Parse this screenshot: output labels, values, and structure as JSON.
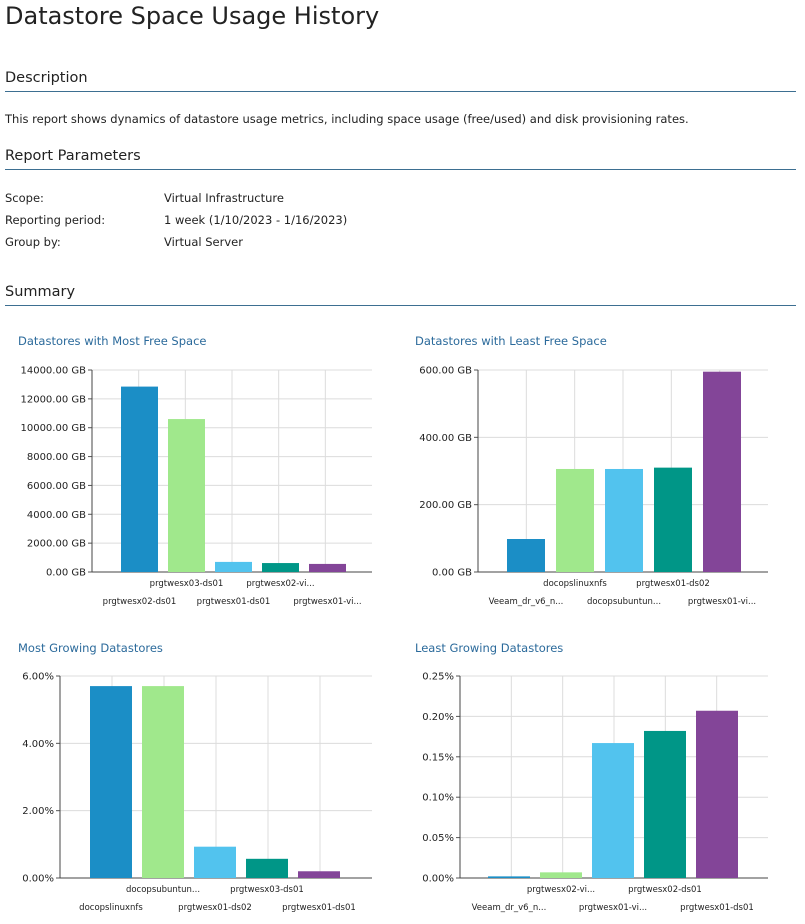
{
  "report": {
    "title": "Datastore Space Usage History",
    "sections": {
      "description": "Description",
      "parameters": "Report Parameters",
      "summary": "Summary"
    },
    "description_text": "This report shows dynamics of datastore usage metrics, including space usage (free/used) and disk provisioning rates.",
    "parameters": [
      {
        "label": "Scope:",
        "value": "Virtual Infrastructure"
      },
      {
        "label": "Reporting period:",
        "value": "1 week (1/10/2023 - 1/16/2023)"
      },
      {
        "label": "Group by:",
        "value": "Virtual Server"
      }
    ]
  },
  "colors": [
    "#1b8ec6",
    "#a0e88c",
    "#52c3ee",
    "#009687",
    "#834598"
  ],
  "chart_data": [
    {
      "type": "bar",
      "title": "Datastores with Most Free Space",
      "categories": [
        "prgtwesx02-ds01",
        "prgtwesx03-ds01",
        "prgtwesx01-ds01",
        "prgtwesx02-vi...",
        "prgtwesx01-vi..."
      ],
      "values": [
        12850,
        10600,
        700,
        620,
        560
      ],
      "ylim": [
        0,
        14000
      ],
      "yticks": [
        "0.00 GB",
        "2000.00 GB",
        "4000.00 GB",
        "6000.00 GB",
        "8000.00 GB",
        "10000.00 GB",
        "12000.00 GB",
        "14000.00 GB"
      ],
      "ytick_values": [
        0,
        2000,
        4000,
        6000,
        8000,
        10000,
        12000,
        14000
      ],
      "xlabel": "",
      "ylabel": "",
      "grid": true
    },
    {
      "type": "bar",
      "title": "Datastores with Least Free Space",
      "categories": [
        "Veeam_dr_v6_n...",
        "docopslinuxnfs",
        "docopsubuntun...",
        "prgtwesx01-ds02",
        "prgtwesx01-vi..."
      ],
      "values": [
        98,
        306,
        306,
        310,
        595
      ],
      "ylim": [
        0,
        600
      ],
      "yticks": [
        "0.00 GB",
        "200.00 GB",
        "400.00 GB",
        "600.00 GB"
      ],
      "ytick_values": [
        0,
        200,
        400,
        600
      ],
      "xlabel": "",
      "ylabel": "",
      "grid": true
    },
    {
      "type": "bar",
      "title": "Most Growing Datastores",
      "categories": [
        "docopslinuxnfs",
        "docopsubuntun...",
        "prgtwesx01-ds02",
        "prgtwesx03-ds01",
        "prgtwesx01-ds01"
      ],
      "values": [
        5.7,
        5.7,
        0.93,
        0.57,
        0.2
      ],
      "ylim": [
        0,
        6
      ],
      "yticks": [
        "0.00%",
        "2.00%",
        "4.00%",
        "6.00%"
      ],
      "ytick_values": [
        0,
        2,
        4,
        6
      ],
      "xlabel": "",
      "ylabel": "",
      "grid": true
    },
    {
      "type": "bar",
      "title": "Least Growing Datastores",
      "categories": [
        "Veeam_dr_v6_n...",
        "prgtwesx02-vi...",
        "prgtwesx01-vi...",
        "prgtwesx02-ds01",
        "prgtwesx01-ds01"
      ],
      "values": [
        0.002,
        0.007,
        0.167,
        0.182,
        0.207
      ],
      "ylim": [
        0,
        0.25
      ],
      "yticks": [
        "0.00%",
        "0.05%",
        "0.10%",
        "0.15%",
        "0.20%",
        "0.25%"
      ],
      "ytick_values": [
        0,
        0.05,
        0.1,
        0.15,
        0.2,
        0.25
      ],
      "xlabel": "",
      "ylabel": "",
      "grid": true
    }
  ]
}
